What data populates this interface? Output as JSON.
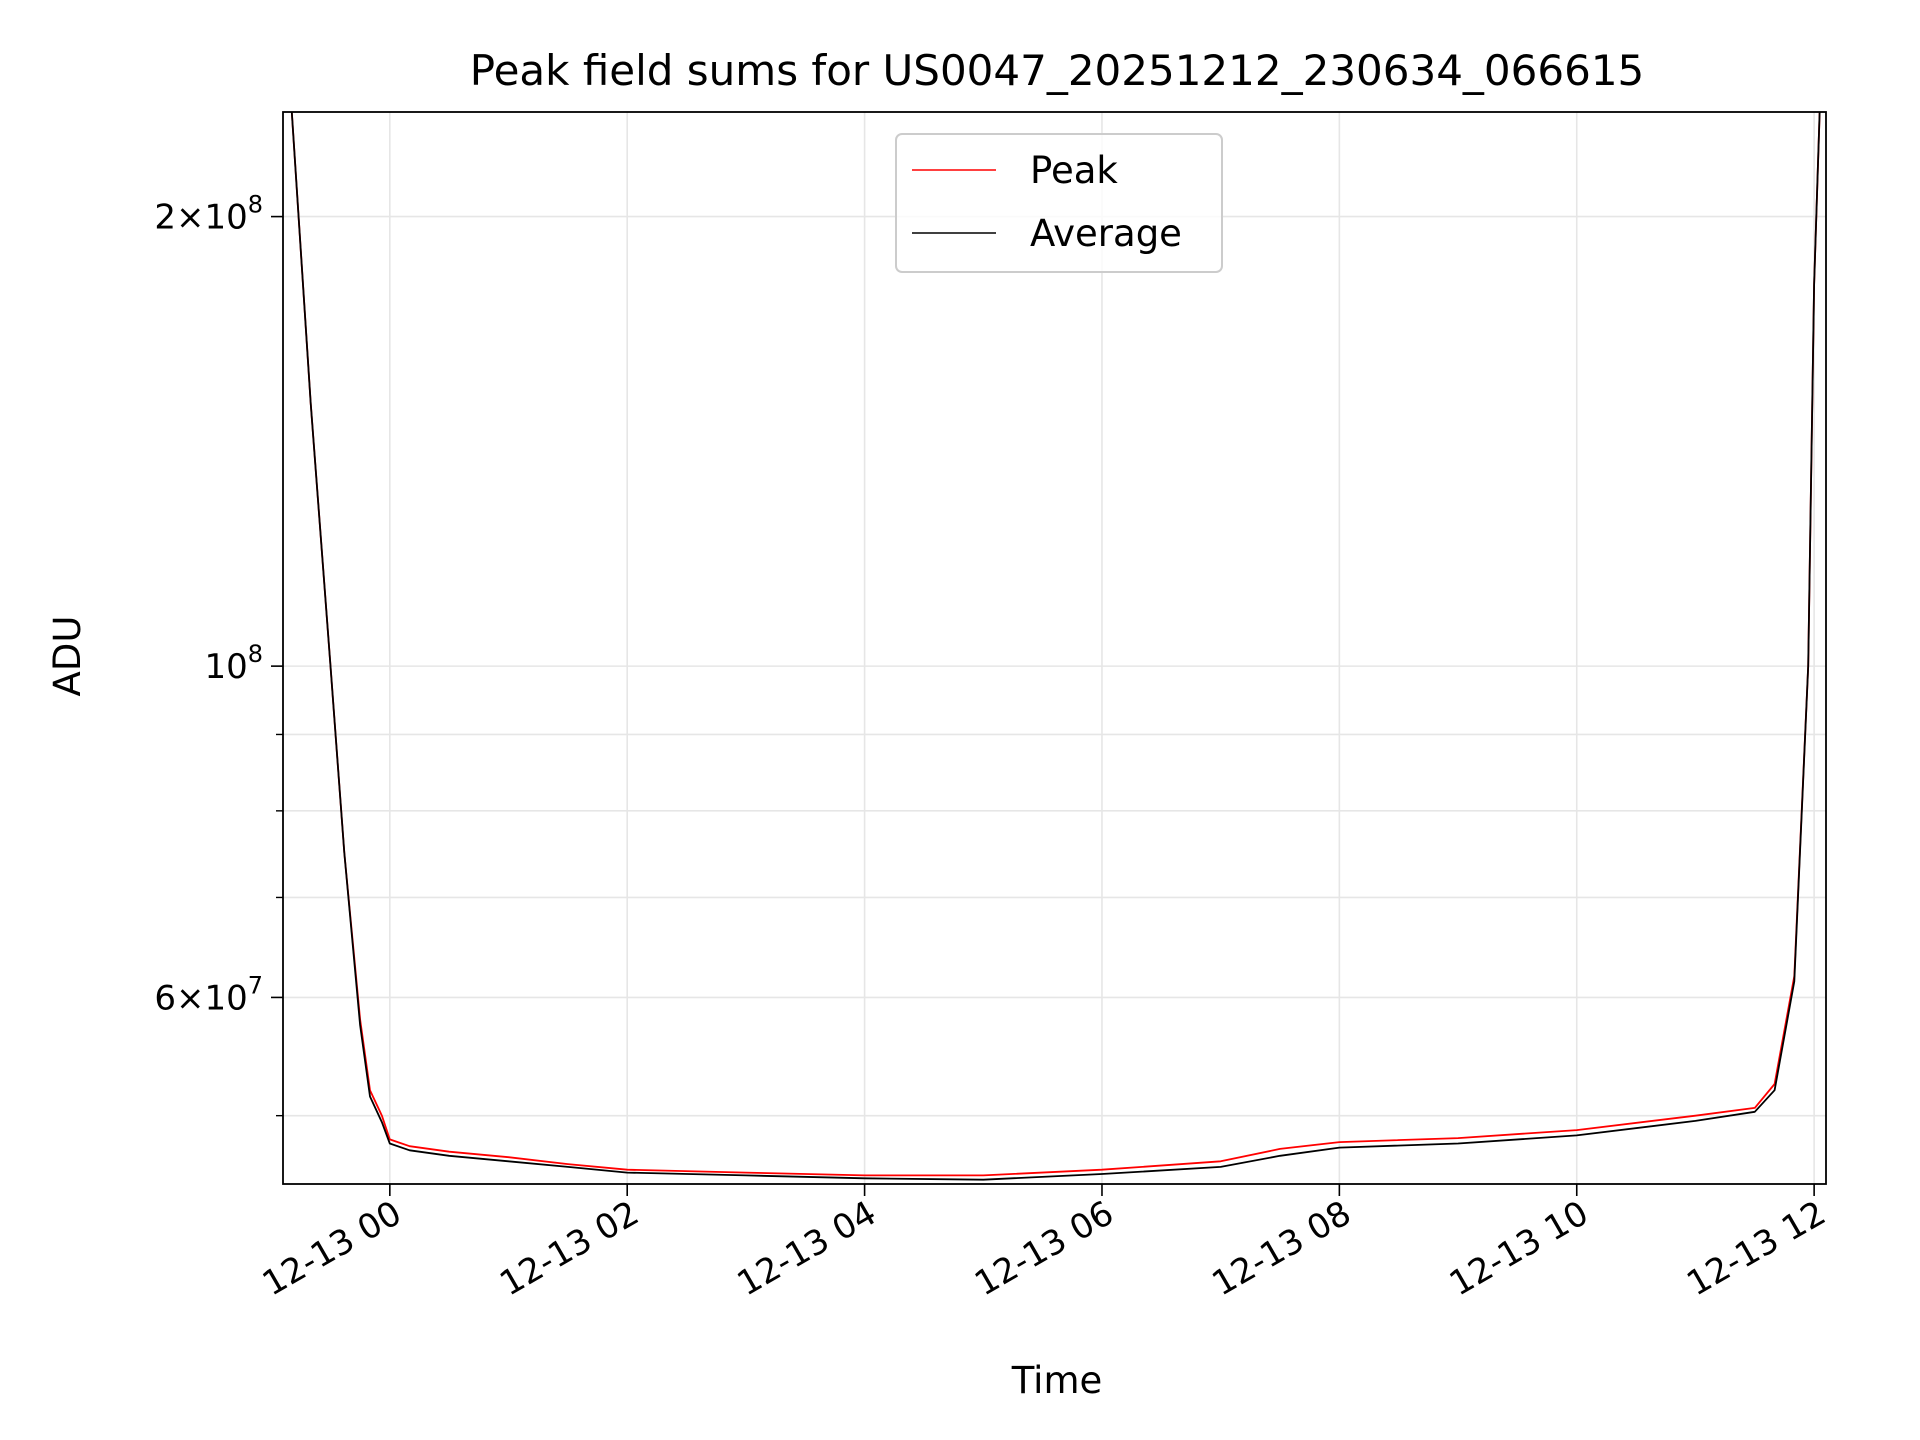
{
  "chart_data": {
    "type": "line",
    "title": "Peak field sums for US0047_20251212_230634_066615",
    "xlabel": "Time",
    "ylabel": "ADU",
    "x_unit": "datetime",
    "xlim": [
      "2025-12-12 23:06",
      "2025-12-13 12:06"
    ],
    "ylim": [
      45000000,
      235000000
    ],
    "y_scale": "log",
    "grid": true,
    "legend_position": "upper center",
    "x_ticks": [
      {
        "value": "2025-12-13 00:00",
        "label": "12-13 00"
      },
      {
        "value": "2025-12-13 02:00",
        "label": "12-13 02"
      },
      {
        "value": "2025-12-13 04:00",
        "label": "12-13 04"
      },
      {
        "value": "2025-12-13 06:00",
        "label": "12-13 06"
      },
      {
        "value": "2025-12-13 08:00",
        "label": "12-13 08"
      },
      {
        "value": "2025-12-13 10:00",
        "label": "12-13 10"
      },
      {
        "value": "2025-12-13 12:00",
        "label": "12-13 12"
      }
    ],
    "y_ticks": [
      {
        "value": 200000000,
        "mantissa": "2",
        "base": "10",
        "exp": "8"
      },
      {
        "value": 100000000,
        "mantissa": "",
        "base": "10",
        "exp": "8"
      },
      {
        "value": 60000000,
        "mantissa": "6",
        "base": "10",
        "exp": "7"
      }
    ],
    "y_minor_ticks": [
      50000000,
      70000000,
      80000000,
      90000000
    ],
    "series": [
      {
        "name": "Peak",
        "color": "#ff0000",
        "x": [
          "2025-12-12 23:10",
          "2025-12-12 23:20",
          "2025-12-12 23:30",
          "2025-12-12 23:37",
          "2025-12-12 23:45",
          "2025-12-12 23:50",
          "2025-12-12 23:56",
          "2025-12-13 00:00",
          "2025-12-13 00:10",
          "2025-12-13 00:30",
          "2025-12-13 01:00",
          "2025-12-13 01:30",
          "2025-12-13 02:00",
          "2025-12-13 03:00",
          "2025-12-13 04:00",
          "2025-12-13 05:00",
          "2025-12-13 06:00",
          "2025-12-13 07:00",
          "2025-12-13 07:30",
          "2025-12-13 08:00",
          "2025-12-13 09:00",
          "2025-12-13 10:00",
          "2025-12-13 11:00",
          "2025-12-13 11:30",
          "2025-12-13 11:40",
          "2025-12-13 11:50",
          "2025-12-13 11:57",
          "2025-12-13 12:00",
          "2025-12-13 12:03"
        ],
        "y": [
          240000000,
          150000000,
          100000000,
          75000000,
          58000000,
          52000000,
          50000000,
          48200000,
          47700000,
          47300000,
          46900000,
          46400000,
          46000000,
          45800000,
          45600000,
          45600000,
          46000000,
          46600000,
          47500000,
          48000000,
          48300000,
          48900000,
          50000000,
          50600000,
          52500000,
          62000000,
          100000000,
          180000000,
          240000000
        ]
      },
      {
        "name": "Average",
        "color": "#000000",
        "x": [
          "2025-12-12 23:10",
          "2025-12-12 23:20",
          "2025-12-12 23:30",
          "2025-12-12 23:37",
          "2025-12-12 23:45",
          "2025-12-12 23:50",
          "2025-12-12 23:56",
          "2025-12-13 00:00",
          "2025-12-13 00:10",
          "2025-12-13 00:30",
          "2025-12-13 01:00",
          "2025-12-13 01:30",
          "2025-12-13 02:00",
          "2025-12-13 03:00",
          "2025-12-13 04:00",
          "2025-12-13 05:00",
          "2025-12-13 06:00",
          "2025-12-13 07:00",
          "2025-12-13 07:30",
          "2025-12-13 08:00",
          "2025-12-13 09:00",
          "2025-12-13 10:00",
          "2025-12-13 11:00",
          "2025-12-13 11:30",
          "2025-12-13 11:40",
          "2025-12-13 11:50",
          "2025-12-13 11:57",
          "2025-12-13 12:00",
          "2025-12-13 12:03"
        ],
        "y": [
          240000000,
          150000000,
          100000000,
          75000000,
          57500000,
          51500000,
          49500000,
          47900000,
          47400000,
          47000000,
          46600000,
          46200000,
          45800000,
          45600000,
          45400000,
          45300000,
          45700000,
          46200000,
          47000000,
          47600000,
          47900000,
          48500000,
          49600000,
          50300000,
          52000000,
          61500000,
          100000000,
          180000000,
          240000000
        ]
      }
    ]
  }
}
